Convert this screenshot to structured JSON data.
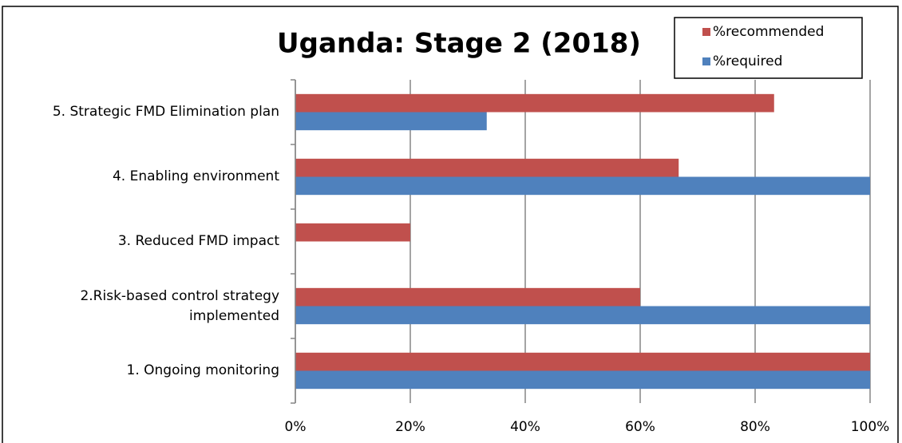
{
  "chart_data": {
    "type": "hbar",
    "title": "Uganda: Stage 2 (2018)",
    "categories": [
      "1. Ongoing monitoring",
      "2.Risk-based control strategy implemented",
      "3. Reduced FMD impact",
      "4. Enabling environment",
      "5. Strategic FMD Elimination plan"
    ],
    "series": [
      {
        "name": "%recommended",
        "color": "#c0504d",
        "values": [
          100,
          60,
          20,
          66.7,
          83.3
        ]
      },
      {
        "name": "%required",
        "color": "#4f81bd",
        "values": [
          100,
          100,
          0,
          100,
          33.3
        ]
      }
    ],
    "xlim": [
      0,
      100
    ],
    "xticks": [
      {
        "value": 0,
        "label": "0%"
      },
      {
        "value": 20,
        "label": "20%"
      },
      {
        "value": 40,
        "label": "40%"
      },
      {
        "value": 60,
        "label": "60%"
      },
      {
        "value": 80,
        "label": "80%"
      },
      {
        "value": 100,
        "label": "100%"
      }
    ],
    "grid": true,
    "legend": "top-right"
  }
}
